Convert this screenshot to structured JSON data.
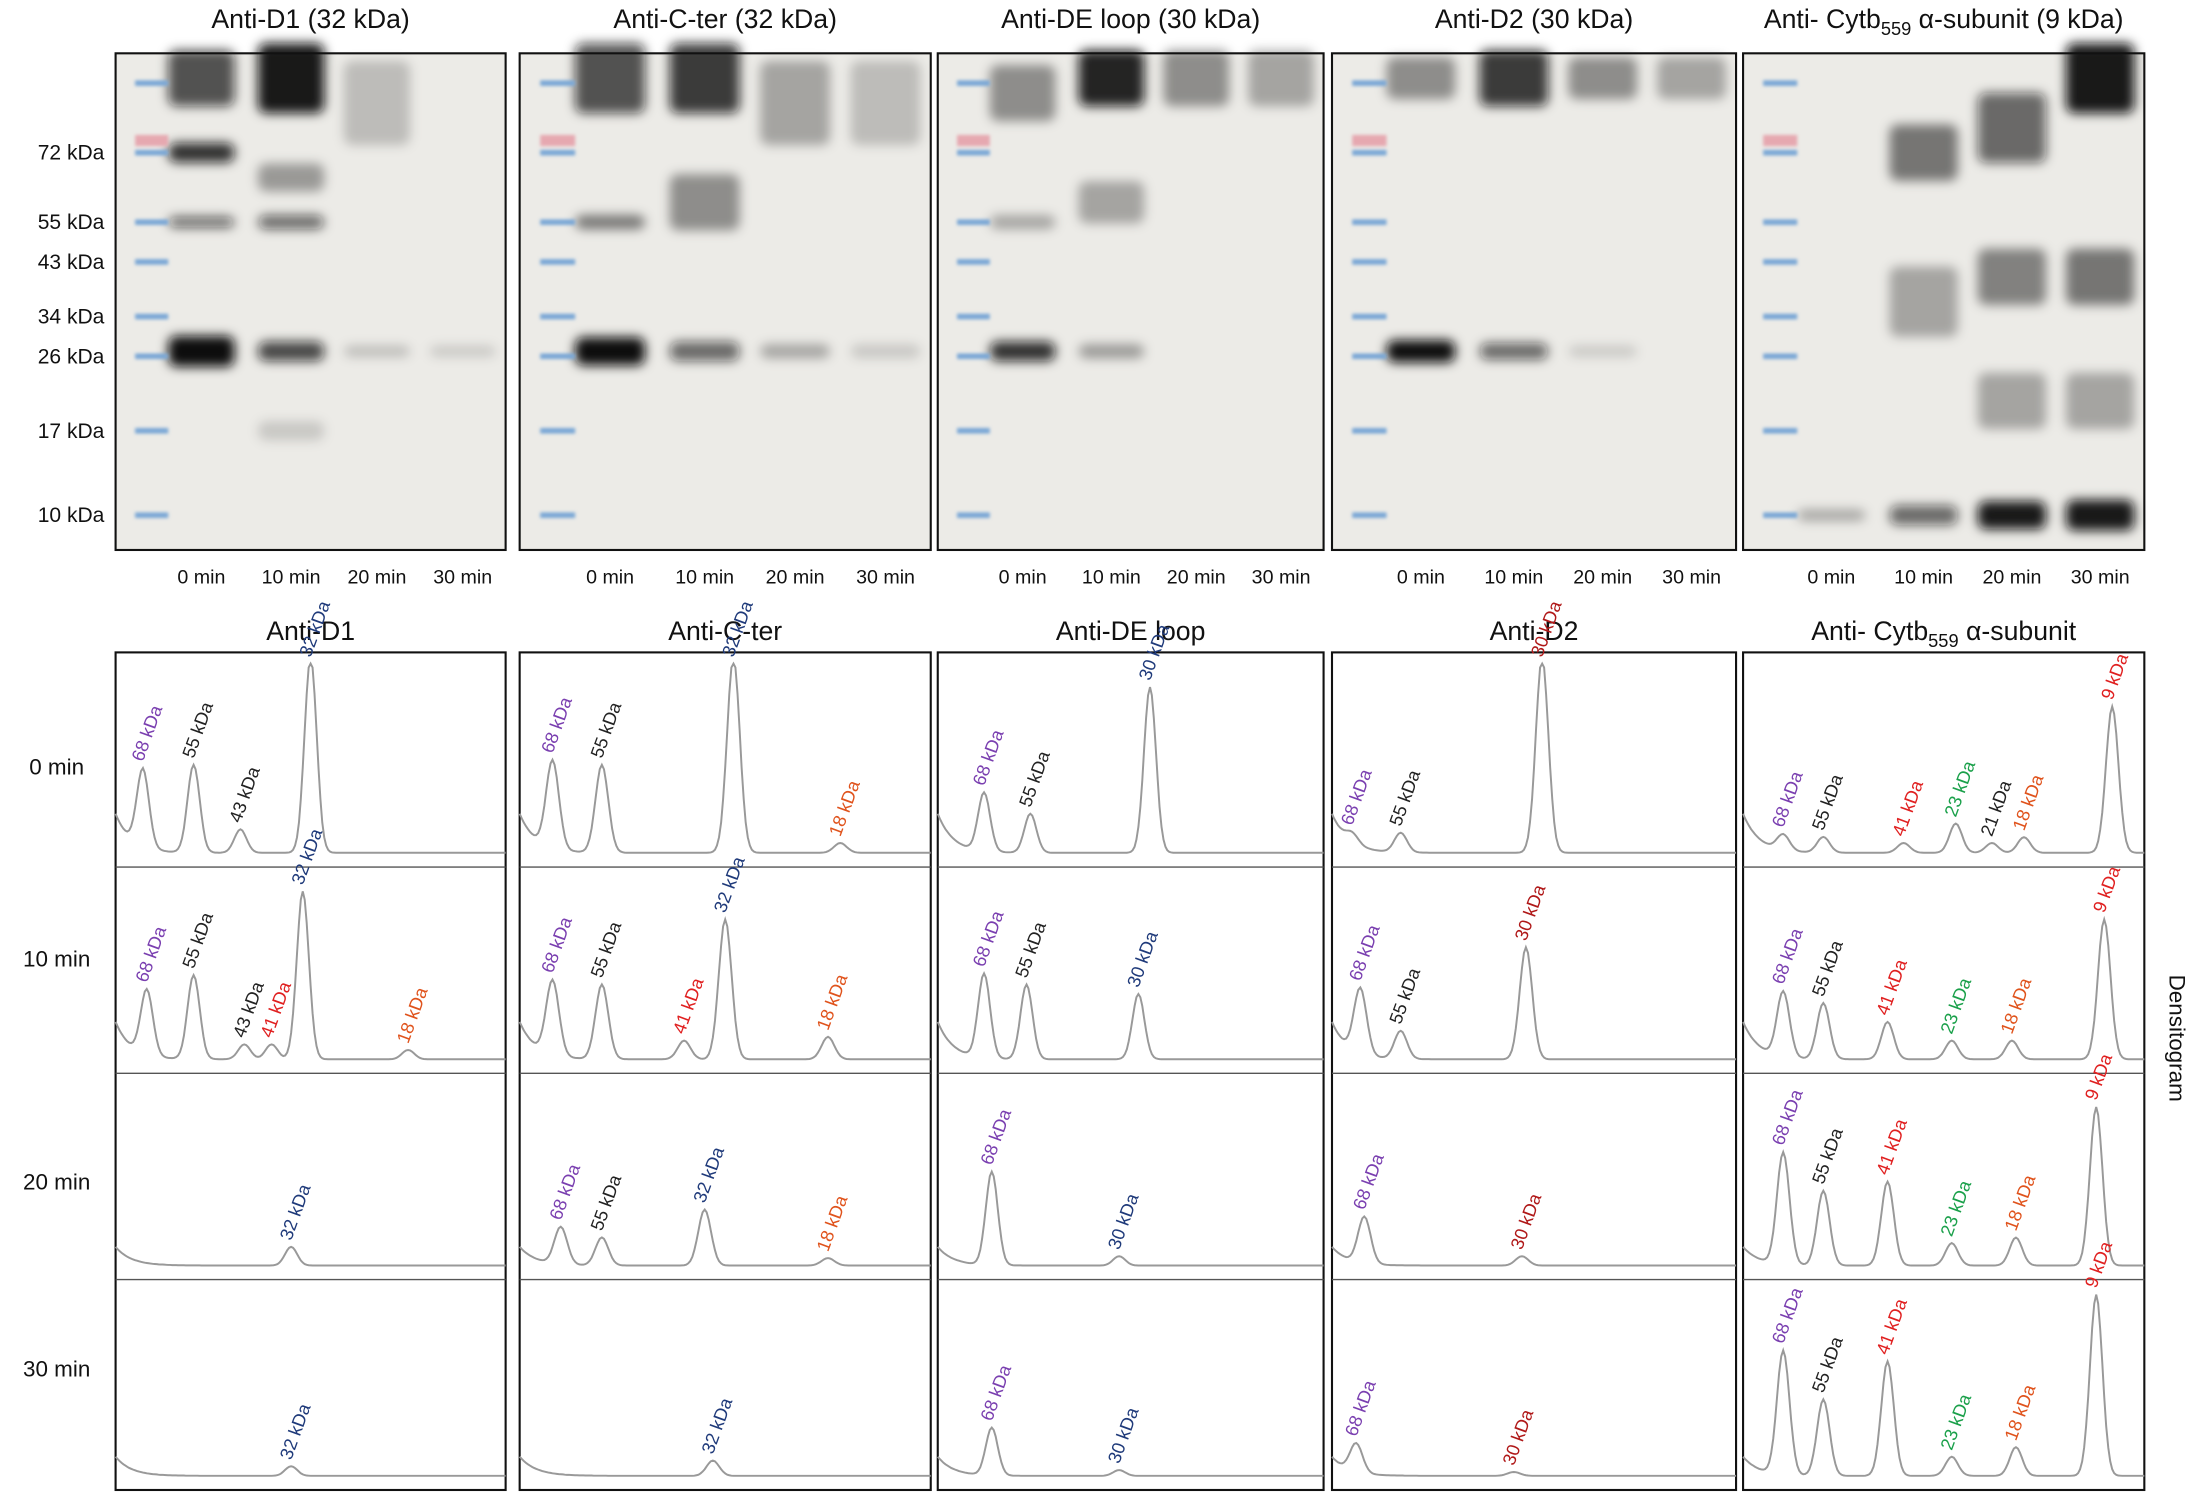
{
  "blots": {
    "panels": [
      {
        "title": "Anti-D1 (32 kDa)"
      },
      {
        "title": "Anti-C-ter (32 kDa)"
      },
      {
        "title": "Anti-DE loop (30 kDa)"
      },
      {
        "title": "Anti-D2 (30 kDa)"
      },
      {
        "title": {
          "pre": "Anti- Cytb",
          "sub": "559",
          "post": " α-subunit (9 kDa)"
        }
      }
    ],
    "lane_labels": [
      "0 min",
      "10 min",
      "20 min",
      "30 min"
    ],
    "markers": [
      "72 kDa",
      "55 kDa",
      "43 kDa",
      "34 kDa",
      "26 kDa",
      "17 kDa",
      "10 kDa"
    ]
  },
  "densitograms": {
    "side_label": "Densitogram",
    "row_labels": [
      "0 min",
      "10 min",
      "20 min",
      "30 min"
    ],
    "panels": [
      {
        "title": "Anti-D1",
        "rows": [
          [
            {
              "label": "68 kDa",
              "color": "#7a3fb0"
            },
            {
              "label": "55 kDa",
              "color": "#222222"
            },
            {
              "label": "43 kDa",
              "color": "#222222"
            },
            {
              "label": "32 kDa",
              "color": "#1f3a7a"
            }
          ],
          [
            {
              "label": "68 kDa",
              "color": "#7a3fb0"
            },
            {
              "label": "55 kDa",
              "color": "#222222"
            },
            {
              "label": "43 kDa",
              "color": "#222222"
            },
            {
              "label": "41 kDa",
              "color": "#e02020"
            },
            {
              "label": "32 kDa",
              "color": "#1f3a7a"
            },
            {
              "label": "18 kDa",
              "color": "#e0531c"
            }
          ],
          [
            {
              "label": "32 kDa",
              "color": "#1f3a7a"
            }
          ],
          [
            {
              "label": "32 kDa",
              "color": "#1f3a7a"
            }
          ]
        ]
      },
      {
        "title": "Anti-C-ter",
        "rows": [
          [
            {
              "label": "68 kDa",
              "color": "#7a3fb0"
            },
            {
              "label": "55 kDa",
              "color": "#222222"
            },
            {
              "label": "32 kDa",
              "color": "#1f3a7a"
            },
            {
              "label": "18 kDa",
              "color": "#e0531c"
            }
          ],
          [
            {
              "label": "68 kDa",
              "color": "#7a3fb0"
            },
            {
              "label": "55 kDa",
              "color": "#222222"
            },
            {
              "label": "41 kDa",
              "color": "#e02020"
            },
            {
              "label": "32 kDa",
              "color": "#1f3a7a"
            },
            {
              "label": "18 kDa",
              "color": "#e0531c"
            }
          ],
          [
            {
              "label": "68 kDa",
              "color": "#7a3fb0"
            },
            {
              "label": "55 kDa",
              "color": "#222222"
            },
            {
              "label": "32 kDa",
              "color": "#1f3a7a"
            },
            {
              "label": "18 kDa",
              "color": "#e0531c"
            }
          ],
          [
            {
              "label": "32 kDa",
              "color": "#1f3a7a"
            }
          ]
        ]
      },
      {
        "title": "Anti-DE loop",
        "rows": [
          [
            {
              "label": "68 kDa",
              "color": "#7a3fb0"
            },
            {
              "label": "55 kDa",
              "color": "#222222"
            },
            {
              "label": "30 kDa",
              "color": "#1f3a7a"
            }
          ],
          [
            {
              "label": "68 kDa",
              "color": "#7a3fb0"
            },
            {
              "label": "55 kDa",
              "color": "#222222"
            },
            {
              "label": "30 kDa",
              "color": "#1f3a7a"
            }
          ],
          [
            {
              "label": "68 kDa",
              "color": "#7a3fb0"
            },
            {
              "label": "30 kDa",
              "color": "#1f3a7a"
            }
          ],
          [
            {
              "label": "68 kDa",
              "color": "#7a3fb0"
            },
            {
              "label": "30 kDa",
              "color": "#1f3a7a"
            }
          ]
        ]
      },
      {
        "title": "Anti-D2",
        "rows": [
          [
            {
              "label": "68 kDa",
              "color": "#7a3fb0"
            },
            {
              "label": "55 kDa",
              "color": "#222222"
            },
            {
              "label": "30 kDa",
              "color": "#b01818"
            }
          ],
          [
            {
              "label": "68 kDa",
              "color": "#7a3fb0"
            },
            {
              "label": "55 kDa",
              "color": "#222222"
            },
            {
              "label": "30 kDa",
              "color": "#b01818"
            }
          ],
          [
            {
              "label": "68 kDa",
              "color": "#7a3fb0"
            },
            {
              "label": "30 kDa",
              "color": "#b01818"
            }
          ],
          [
            {
              "label": "68 kDa",
              "color": "#7a3fb0"
            },
            {
              "label": "30 kDa",
              "color": "#b01818"
            }
          ]
        ]
      },
      {
        "title": {
          "pre": "Anti- Cytb",
          "sub": "559",
          "post": " α-subunit"
        },
        "rows": [
          [
            {
              "label": "68 kDa",
              "color": "#7a3fb0"
            },
            {
              "label": "55 kDa",
              "color": "#222222"
            },
            {
              "label": "41 kDa",
              "color": "#e02020"
            },
            {
              "label": "23 kDa",
              "color": "#1aa04a"
            },
            {
              "label": "21 kDa",
              "color": "#222222"
            },
            {
              "label": "18 kDa",
              "color": "#e0531c"
            },
            {
              "label": "9 kDa",
              "color": "#e02020"
            }
          ],
          [
            {
              "label": "68 kDa",
              "color": "#7a3fb0"
            },
            {
              "label": "55 kDa",
              "color": "#222222"
            },
            {
              "label": "41 kDa",
              "color": "#e02020"
            },
            {
              "label": "23 kDa",
              "color": "#1aa04a"
            },
            {
              "label": "18 kDa",
              "color": "#e0531c"
            },
            {
              "label": "9 kDa",
              "color": "#e02020"
            }
          ],
          [
            {
              "label": "68 kDa",
              "color": "#7a3fb0"
            },
            {
              "label": "55 kDa",
              "color": "#222222"
            },
            {
              "label": "41 kDa",
              "color": "#e02020"
            },
            {
              "label": "23 kDa",
              "color": "#1aa04a"
            },
            {
              "label": "18 kDa",
              "color": "#e0531c"
            },
            {
              "label": "9 kDa",
              "color": "#e02020"
            }
          ],
          [
            {
              "label": "68 kDa",
              "color": "#7a3fb0"
            },
            {
              "label": "55 kDa",
              "color": "#222222"
            },
            {
              "label": "41 kDa",
              "color": "#e02020"
            },
            {
              "label": "23 kDa",
              "color": "#1aa04a"
            },
            {
              "label": "18 kDa",
              "color": "#e0531c"
            },
            {
              "label": "9 kDa",
              "color": "#e02020"
            }
          ]
        ]
      }
    ]
  }
}
